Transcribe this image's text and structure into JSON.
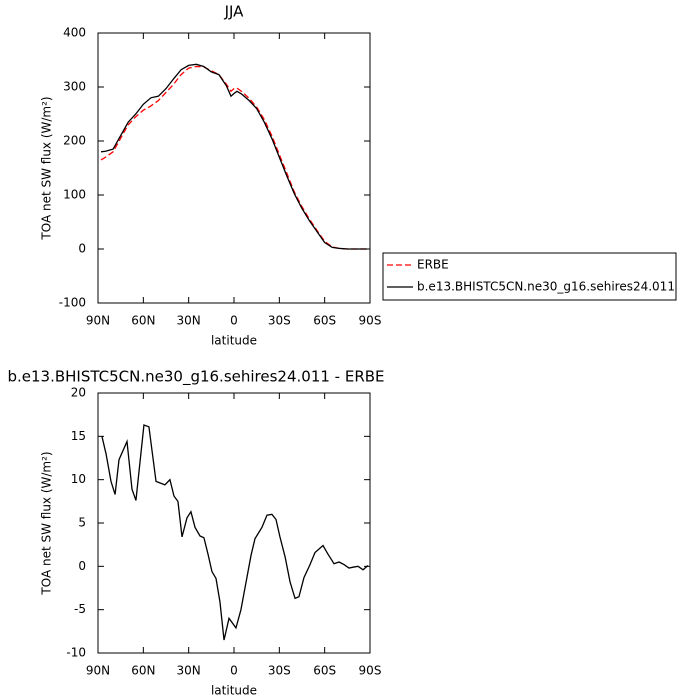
{
  "chart_data": [
    {
      "type": "line",
      "title": "JJA",
      "x_label": "latitude",
      "y_label": "TOA net SW flux (W/m²)",
      "x": [
        88,
        85,
        80,
        75,
        70,
        65,
        60,
        55,
        50,
        45,
        40,
        35,
        30,
        25,
        20,
        15,
        10,
        5,
        2,
        0,
        -2,
        -5,
        -10,
        -15,
        -20,
        -25,
        -30,
        -35,
        -40,
        -45,
        -50,
        -55,
        -60,
        -65,
        -70,
        -75,
        -80,
        -85,
        -88
      ],
      "series": [
        {
          "name": "ERBE",
          "color": "#ff0000",
          "dashed": true,
          "values": [
            165,
            170,
            180,
            205,
            230,
            245,
            257,
            265,
            275,
            290,
            305,
            323,
            335,
            338,
            337,
            330,
            323,
            305,
            292,
            297,
            298,
            292,
            279,
            263,
            240,
            210,
            175,
            140,
            105,
            78,
            55,
            34,
            14,
            4,
            1,
            0,
            0,
            0,
            0
          ]
        },
        {
          "name": "b.e13.BHISTC5CN.ne30_g16.sehires24.011",
          "color": "#000000",
          "dashed": false,
          "values": [
            180,
            181,
            185,
            210,
            235,
            250,
            268,
            280,
            283,
            297,
            315,
            332,
            340,
            342,
            338,
            328,
            323,
            302,
            283,
            288,
            292,
            287,
            275,
            260,
            235,
            205,
            170,
            135,
            102,
            75,
            52,
            32,
            12,
            3,
            1,
            0,
            0,
            0,
            0
          ]
        }
      ],
      "xlim": [
        90,
        -90
      ],
      "xticks": [
        {
          "value": 90,
          "label": "90N"
        },
        {
          "value": 60,
          "label": "60N"
        },
        {
          "value": 30,
          "label": "30N"
        },
        0,
        {
          "value": -30,
          "label": "30S"
        },
        {
          "value": -60,
          "label": "60S"
        },
        {
          "value": -90,
          "label": "90S"
        }
      ],
      "ylim": [
        -100,
        400
      ],
      "yticks": [
        -100,
        0,
        100,
        200,
        300,
        400
      ],
      "legend": "right"
    },
    {
      "type": "line",
      "title": "b.e13.BHISTC5CN.ne30_g16.sehires24.011 - ERBE",
      "x_label": "latitude",
      "y_label": "TOA net SW flux (W/m²)",
      "x": [
        87.4,
        84.7,
        81.4,
        78.7,
        76.1,
        70.8,
        67.5,
        64.9,
        59.6,
        56.3,
        51.6,
        45.7,
        42.4,
        39.7,
        37.1,
        34.4,
        31.1,
        28.5,
        25.8,
        22.5,
        19.9,
        17.2,
        14.6,
        11.9,
        9.3,
        6.6,
        3.3,
        -1.3,
        -4.6,
        -7.9,
        -11.3,
        -13.9,
        -18.5,
        -21.8,
        -25.1,
        -27.8,
        -30.4,
        -33.8,
        -37.1,
        -40.4,
        -43.0,
        -46.3,
        -50.3,
        -53.6,
        -58.9,
        -62.2,
        -66.2,
        -69.5,
        -72.8,
        -76.1,
        -78.8,
        -82.1,
        -85.4,
        -88.7
      ],
      "series": [
        {
          "color": "#000000",
          "dashed": false,
          "values": [
            15,
            13,
            9.8,
            8.3,
            12.3,
            14.4,
            8.9,
            7.6,
            16.3,
            16.1,
            9.8,
            9.4,
            10,
            8.1,
            7.5,
            3.4,
            5.6,
            6.3,
            4.5,
            3.5,
            3.3,
            1.4,
            -0.6,
            -1.4,
            -4.1,
            -8.5,
            -6.0,
            -7.1,
            -5.0,
            -1.9,
            1.3,
            3.2,
            4.5,
            5.9,
            6.0,
            5.4,
            3.4,
            1.1,
            -1.8,
            -3.7,
            -3.5,
            -1.3,
            0.2,
            1.6,
            2.4,
            1.4,
            0.3,
            0.5,
            0.2,
            -0.2,
            -0.1,
            0,
            -0.4,
            0.1
          ]
        }
      ],
      "xlim": [
        90,
        -90
      ],
      "xticks": [
        {
          "value": 90,
          "label": "90N"
        },
        {
          "value": 60,
          "label": "60N"
        },
        {
          "value": 30,
          "label": "30N"
        },
        0,
        {
          "value": -30,
          "label": "30S"
        },
        {
          "value": -60,
          "label": "60S"
        },
        {
          "value": -90,
          "label": "90S"
        }
      ],
      "ylim": [
        -10,
        20
      ],
      "yticks": [
        -10,
        -5,
        0,
        5,
        10,
        15,
        20
      ]
    }
  ]
}
